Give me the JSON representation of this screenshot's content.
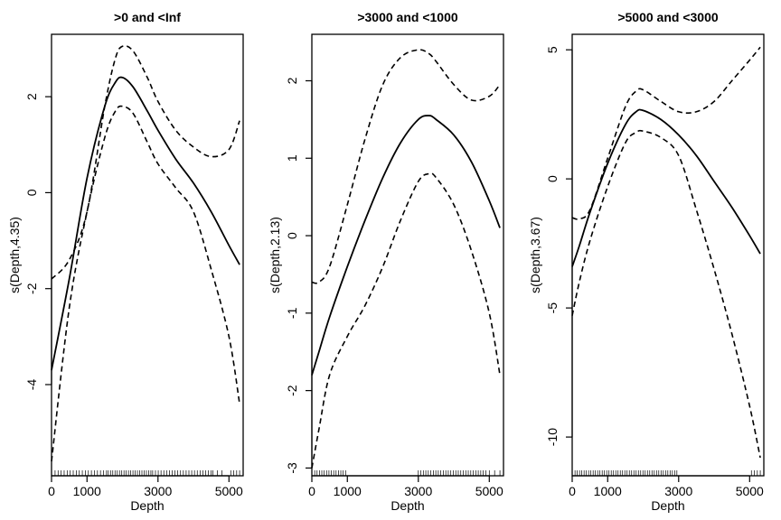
{
  "chart_data": [
    {
      "type": "line",
      "title": ">0 and <Inf",
      "xlabel": "Depth",
      "ylabel": "s(Depth,4.35)",
      "xlim": [
        0,
        5400
      ],
      "ylim": [
        -5.9,
        3.3
      ],
      "xticks": [
        0,
        1000,
        3000,
        5000
      ],
      "xtick_labels": [
        "0",
        "1000",
        "3000",
        "5000"
      ],
      "yticks": [
        -4,
        -2,
        0,
        2
      ],
      "ytick_labels": [
        "-4",
        "-2",
        "0",
        "2"
      ],
      "x": [
        0,
        500,
        1000,
        1500,
        1800,
        2000,
        2300,
        2700,
        3000,
        3500,
        4000,
        4500,
        5000,
        5300
      ],
      "series": [
        {
          "role": "fit",
          "values": [
            -3.7,
            -1.8,
            0.3,
            1.8,
            2.3,
            2.4,
            2.2,
            1.7,
            1.3,
            0.7,
            0.2,
            -0.4,
            -1.1,
            -1.5
          ]
        },
        {
          "role": "upper",
          "values": [
            -1.8,
            -1.4,
            -0.4,
            1.8,
            2.8,
            3.05,
            2.95,
            2.4,
            1.9,
            1.3,
            0.95,
            0.75,
            0.9,
            1.5
          ]
        },
        {
          "role": "lower",
          "values": [
            -5.6,
            -2.4,
            -0.4,
            1.15,
            1.7,
            1.8,
            1.65,
            1.05,
            0.6,
            0.1,
            -0.4,
            -1.6,
            -3.0,
            -4.4
          ]
        }
      ],
      "rug": [
        [
          100,
          1550,
          18
        ],
        [
          1600,
          2800,
          20
        ],
        [
          2850,
          4500,
          22
        ],
        [
          4550,
          4800,
          3
        ],
        [
          5050,
          5300,
          4
        ]
      ]
    },
    {
      "type": "line",
      "title": ">3000 and <1000",
      "xlabel": "Depth",
      "ylabel": "s(Depth,2.13)",
      "xlim": [
        0,
        5400
      ],
      "ylim": [
        -3.1,
        2.6
      ],
      "xticks": [
        0,
        1000,
        3000,
        5000
      ],
      "xtick_labels": [
        "0",
        "1000",
        "3000",
        "5000"
      ],
      "yticks": [
        -3,
        -2,
        -1,
        0,
        1,
        2
      ],
      "ytick_labels": [
        "-3",
        "-2",
        "-1",
        "0",
        "1",
        "2"
      ],
      "x": [
        0,
        200,
        500,
        1000,
        1500,
        2000,
        2500,
        3000,
        3300,
        3500,
        4000,
        4500,
        5000,
        5300
      ],
      "series": [
        {
          "role": "fit",
          "values": [
            -1.8,
            -1.5,
            -1.05,
            -0.4,
            0.2,
            0.75,
            1.2,
            1.5,
            1.55,
            1.5,
            1.3,
            0.95,
            0.45,
            0.1
          ]
        },
        {
          "role": "upper",
          "values": [
            -0.6,
            -0.6,
            -0.4,
            0.4,
            1.25,
            1.95,
            2.3,
            2.4,
            2.35,
            2.25,
            1.95,
            1.75,
            1.8,
            1.95
          ]
        },
        {
          "role": "lower",
          "values": [
            -3.0,
            -2.5,
            -1.8,
            -1.3,
            -0.9,
            -0.4,
            0.2,
            0.7,
            0.8,
            0.75,
            0.4,
            -0.2,
            -1.0,
            -1.8
          ]
        }
      ],
      "rug": [
        [
          80,
          950,
          14
        ],
        [
          3000,
          4900,
          28
        ],
        [
          5000,
          5300,
          3
        ]
      ]
    },
    {
      "type": "line",
      "title": ">5000 and <3000",
      "xlabel": "Depth",
      "ylabel": "s(Depth,3.67)",
      "xlim": [
        0,
        5400
      ],
      "ylim": [
        -11.5,
        5.6
      ],
      "xticks": [
        0,
        1000,
        3000,
        5000
      ],
      "xtick_labels": [
        "0",
        "1000",
        "3000",
        "5000"
      ],
      "yticks": [
        -10,
        -5,
        0,
        5
      ],
      "ytick_labels": [
        "-10",
        "-5",
        "0",
        "5"
      ],
      "x": [
        0,
        200,
        500,
        1000,
        1500,
        1800,
        2000,
        2500,
        3000,
        3500,
        4000,
        4500,
        5000,
        5300
      ],
      "series": [
        {
          "role": "fit",
          "values": [
            -3.4,
            -2.6,
            -1.3,
            0.6,
            2.1,
            2.6,
            2.65,
            2.3,
            1.7,
            0.9,
            -0.1,
            -1.1,
            -2.2,
            -2.9
          ]
        },
        {
          "role": "upper",
          "values": [
            -1.5,
            -1.55,
            -1.2,
            0.8,
            2.8,
            3.4,
            3.45,
            3.0,
            2.6,
            2.6,
            3.0,
            3.8,
            4.6,
            5.1
          ]
        },
        {
          "role": "lower",
          "values": [
            -5.3,
            -4.0,
            -2.4,
            -0.3,
            1.4,
            1.8,
            1.85,
            1.6,
            0.9,
            -1.2,
            -3.5,
            -6.0,
            -8.8,
            -10.8
          ]
        }
      ],
      "rug": [
        [
          80,
          2950,
          46
        ],
        [
          5050,
          5300,
          4
        ]
      ]
    }
  ]
}
